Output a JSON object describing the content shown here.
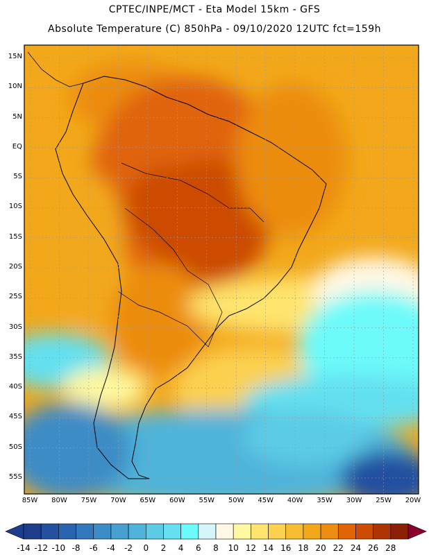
{
  "header": {
    "line1": "CPTEC/INPE/MCT -  Eta Model 15km - GFS",
    "line2": "Absolute Temperature (C) 850hPa - 09/10/2020 12UTC fct=159h"
  },
  "map": {
    "lat_labels": [
      "15N",
      "10N",
      "5N",
      "EQ",
      "5S",
      "10S",
      "15S",
      "20S",
      "25S",
      "30S",
      "35S",
      "40S",
      "45S",
      "50S",
      "55S"
    ],
    "lon_labels": [
      "85W",
      "80W",
      "75W",
      "70W",
      "65W",
      "60W",
      "55W",
      "50W",
      "45W",
      "40W",
      "35W",
      "30W",
      "25W",
      "20W"
    ],
    "lat_range": [
      17,
      -58
    ],
    "lon_range": [
      -85,
      -20
    ]
  },
  "colorbar": {
    "labels": [
      "-14",
      "-12",
      "-10",
      "-8",
      "-6",
      "-4",
      "-2",
      "0",
      "2",
      "4",
      "6",
      "8",
      "10",
      "12",
      "14",
      "16",
      "18",
      "20",
      "22",
      "24",
      "26",
      "28"
    ],
    "colors": [
      "#1d3d8c",
      "#2450a0",
      "#2a64b0",
      "#3278bc",
      "#3c8cc6",
      "#46a0d0",
      "#50b4da",
      "#5ccce6",
      "#64e0f0",
      "#6cfafa",
      "#d4f6fa",
      "#fff8e4",
      "#fff8a0",
      "#ffe46e",
      "#fcd050",
      "#f6bc32",
      "#f2a81a",
      "#ec8c10",
      "#e06408",
      "#cc4c04",
      "#ae3404",
      "#8c2006"
    ]
  }
}
